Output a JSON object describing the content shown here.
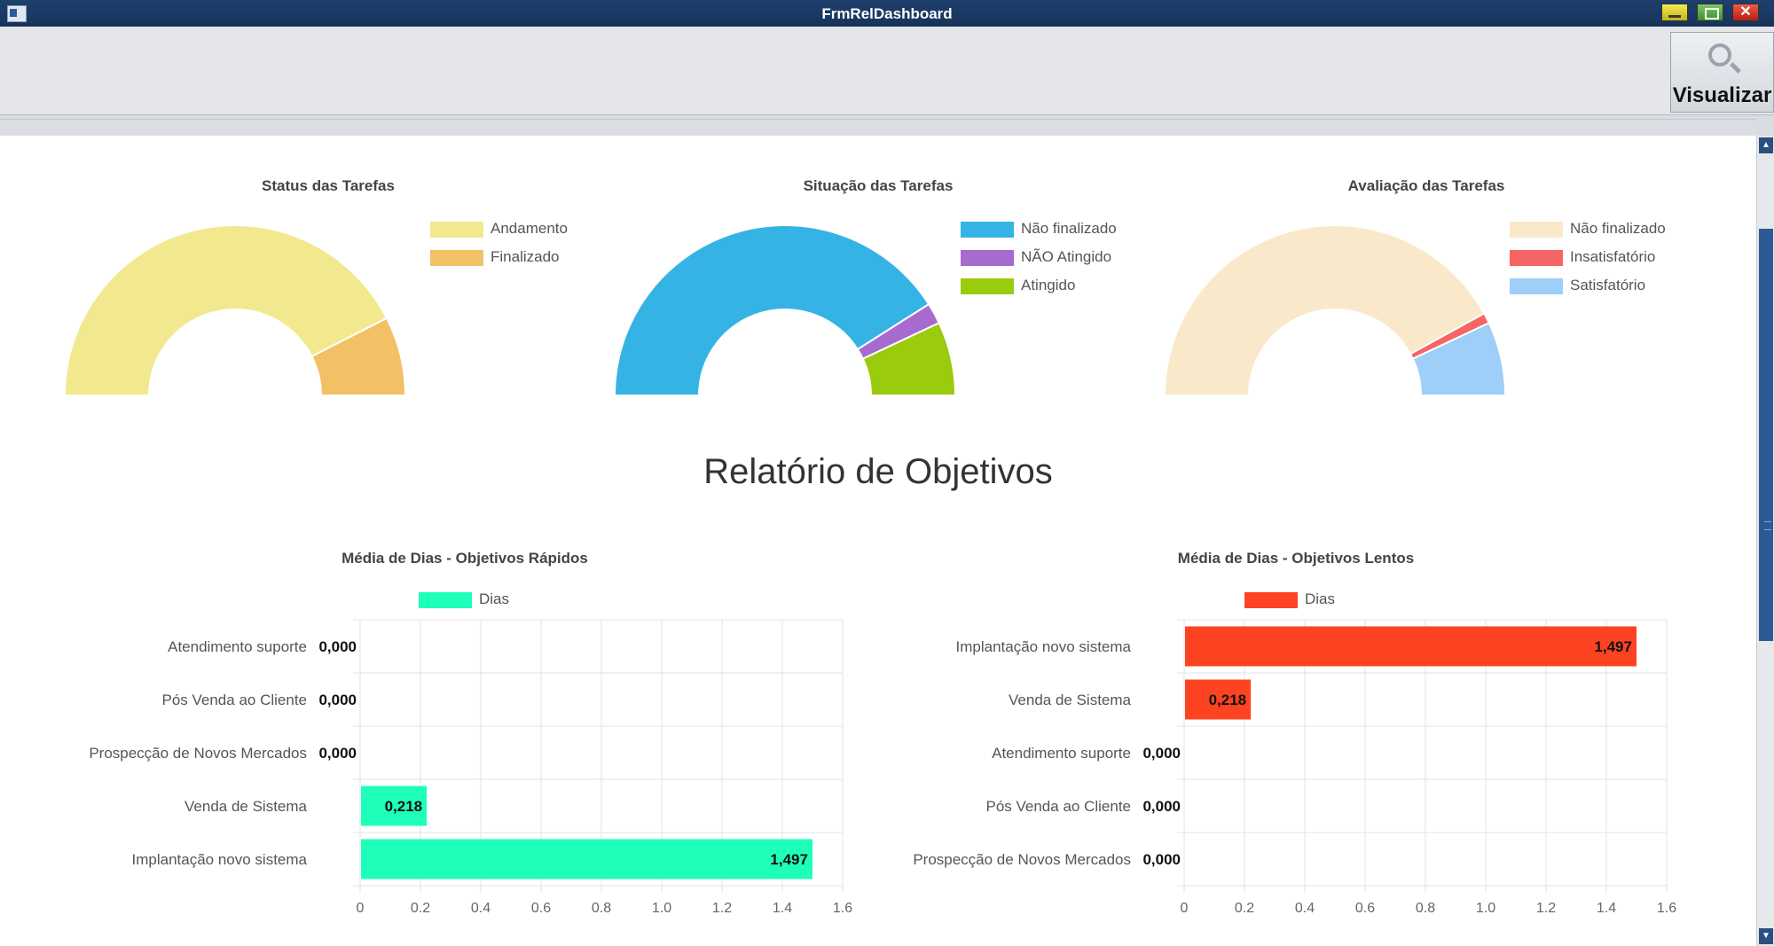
{
  "window": {
    "title": "FrmRelDashboard",
    "close_glyph": "✕"
  },
  "toolbar": {
    "visualizar_label": "Visualizar",
    "visualizar_icon": "magnifier-icon"
  },
  "colors": {
    "andamento": "#f2e98f",
    "finalizado": "#f2c165",
    "nao_finalizado": "#36b3e5",
    "nao_atingido": "#a76bd0",
    "atingido": "#9acb0c",
    "aval_nao_finalizado": "#f9e9ca",
    "insatisfatorio": "#f56565",
    "satisfatorio": "#9dcff8",
    "rapidos_bar": "#1effb9",
    "lentos_bar": "#fd4322"
  },
  "report": {
    "title": "Relatório de Objetivos"
  },
  "chart_data": [
    {
      "type": "pie",
      "variant": "half-doughnut",
      "title": "Status das Tarefas",
      "legend_position": "top-right",
      "labels": [
        "Andamento",
        "Finalizado"
      ],
      "values": [
        85,
        15
      ]
    },
    {
      "type": "pie",
      "variant": "half-doughnut",
      "title": "Situação das Tarefas",
      "legend_position": "top-right",
      "labels": [
        "Não finalizado",
        "NÃO Atingido",
        "Atingido"
      ],
      "values": [
        82,
        4,
        14
      ]
    },
    {
      "type": "pie",
      "variant": "half-doughnut",
      "title": "Avaliação das Tarefas",
      "legend_position": "top-right",
      "labels": [
        "Não finalizado",
        "Insatisfatório",
        "Satisfatório"
      ],
      "values": [
        84,
        2,
        14
      ]
    },
    {
      "type": "bar",
      "orientation": "horizontal",
      "title": "Média de Dias - Objetivos Rápidos",
      "legend_position": "top",
      "categories": [
        "Atendimento suporte",
        "Pós Venda ao Cliente",
        "Prospecção de Novos Mercados",
        "Venda de Sistema",
        "Implantação novo sistema"
      ],
      "series": [
        {
          "name": "Dias",
          "values": [
            0.0,
            0.0,
            0.0,
            0.218,
            1.497
          ]
        }
      ],
      "value_labels": [
        "0,000",
        "0,000",
        "0,000",
        "0,218",
        "1,497"
      ],
      "xlim": [
        0,
        1.6
      ],
      "xticks": [
        "0",
        "0.2",
        "0.4",
        "0.6",
        "0.8",
        "1.0",
        "1.2",
        "1.4",
        "1.6"
      ],
      "grid": true
    },
    {
      "type": "bar",
      "orientation": "horizontal",
      "title": "Média de Dias - Objetivos Lentos",
      "legend_position": "top",
      "categories": [
        "Implantação novo sistema",
        "Venda de Sistema",
        "Atendimento suporte",
        "Pós Venda ao Cliente",
        "Prospecção de Novos Mercados"
      ],
      "series": [
        {
          "name": "Dias",
          "values": [
            1.497,
            0.218,
            0.0,
            0.0,
            0.0
          ]
        }
      ],
      "value_labels": [
        "1,497",
        "0,218",
        "0,000",
        "0,000",
        "0,000"
      ],
      "xlim": [
        0,
        1.6
      ],
      "xticks": [
        "0",
        "0.2",
        "0.4",
        "0.6",
        "0.8",
        "1.0",
        "1.2",
        "1.4",
        "1.6"
      ],
      "grid": true
    }
  ]
}
